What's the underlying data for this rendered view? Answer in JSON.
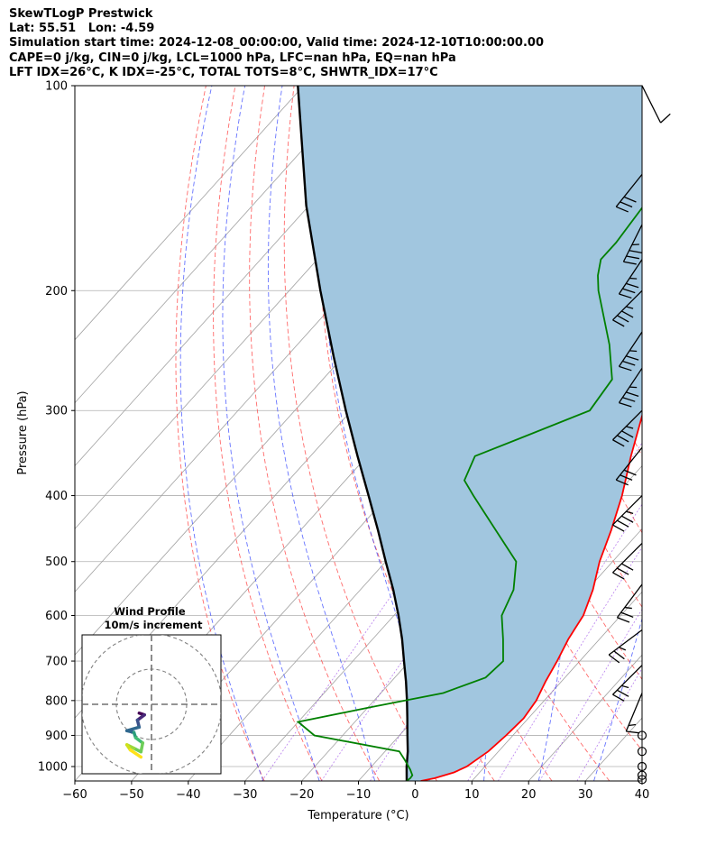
{
  "header": {
    "title": "SkewTLogP Prestwick",
    "location": "Lat: 55.51   Lon: -4.59",
    "times": "Simulation start time: 2024-12-08_00:00:00, Valid time: 2024-12-10T10:00:00.00",
    "indices1": "CAPE=0 j/kg, CIN=0 j/kg, LCL=1000 hPa, LFC=nan hPa, EQ=nan hPa",
    "indices2": "LFT IDX=26°C, K IDX=-25°C, TOTAL TOTS=8°C, SHWTR_IDX=17°C"
  },
  "chart_data": {
    "type": "line",
    "subtype": "skew-T log-P sounding",
    "xlabel": "Temperature (°C)",
    "ylabel": "Pressure (hPa)",
    "xlim": [
      -60,
      40
    ],
    "ylim": [
      1050,
      100
    ],
    "y_scale": "log",
    "grid": true,
    "x_ticks": [
      -60,
      -50,
      -40,
      -30,
      -20,
      -10,
      0,
      10,
      20,
      30,
      40
    ],
    "y_ticks": [
      100,
      200,
      300,
      400,
      500,
      600,
      700,
      800,
      900,
      1000
    ],
    "series": [
      {
        "role": "temperature",
        "color": "#ff0000",
        "points": [
          [
            1050,
            1
          ],
          [
            1040,
            3
          ],
          [
            1020,
            5.5
          ],
          [
            1000,
            6.8
          ],
          [
            950,
            8.2
          ],
          [
            900,
            8.8
          ],
          [
            850,
            9.2
          ],
          [
            800,
            8.6
          ],
          [
            750,
            7.2
          ],
          [
            700,
            6
          ],
          [
            650,
            4.5
          ],
          [
            600,
            3.4
          ],
          [
            550,
            1
          ],
          [
            500,
            -2.3
          ],
          [
            450,
            -5.2
          ],
          [
            400,
            -8.8
          ],
          [
            350,
            -13.5
          ],
          [
            300,
            -18.5
          ],
          [
            250,
            -27
          ],
          [
            200,
            -37
          ],
          [
            180,
            -41.5
          ],
          [
            175,
            -39
          ],
          [
            160,
            -37.5
          ],
          [
            150,
            -38
          ],
          [
            140,
            -36
          ],
          [
            120,
            -36.5
          ],
          [
            110,
            -34
          ],
          [
            100,
            -35
          ]
        ]
      },
      {
        "role": "dewpoint",
        "color": "#008000",
        "points": [
          [
            1050,
            -1.5
          ],
          [
            1040,
            -1.3
          ],
          [
            1030,
            -1.4
          ],
          [
            1010,
            -2.7
          ],
          [
            980,
            -5
          ],
          [
            950,
            -7.5
          ],
          [
            900,
            -25
          ],
          [
            860,
            -30
          ],
          [
            820,
            -20
          ],
          [
            780,
            -9
          ],
          [
            740,
            -4
          ],
          [
            700,
            -3.5
          ],
          [
            650,
            -7
          ],
          [
            600,
            -11
          ],
          [
            550,
            -13
          ],
          [
            500,
            -17
          ],
          [
            450,
            -25.5
          ],
          [
            400,
            -35
          ],
          [
            380,
            -39
          ],
          [
            350,
            -41
          ],
          [
            330,
            -36
          ],
          [
            300,
            -28
          ],
          [
            270,
            -29
          ],
          [
            240,
            -35
          ],
          [
            200,
            -45.5
          ],
          [
            190,
            -48
          ],
          [
            180,
            -50
          ],
          [
            170,
            -50
          ],
          [
            150,
            -51
          ],
          [
            130,
            -51
          ],
          [
            120,
            -54
          ],
          [
            100,
            -57
          ]
        ]
      },
      {
        "role": "parcel",
        "color": "#000000",
        "points": [
          [
            1050,
            -1.5
          ],
          [
            1000,
            -3.8
          ],
          [
            950,
            -6
          ],
          [
            900,
            -8.6
          ],
          [
            850,
            -11.3
          ],
          [
            800,
            -14.2
          ],
          [
            750,
            -17.4
          ],
          [
            700,
            -21
          ],
          [
            650,
            -24.8
          ],
          [
            600,
            -29.2
          ],
          [
            550,
            -34.2
          ],
          [
            500,
            -40
          ],
          [
            450,
            -46.3
          ],
          [
            400,
            -53.5
          ],
          [
            350,
            -61.7
          ],
          [
            300,
            -71
          ],
          [
            250,
            -81.7
          ],
          [
            200,
            -94.5
          ],
          [
            150,
            -110.5
          ],
          [
            100,
            -131
          ]
        ]
      }
    ],
    "shaded_region": {
      "between": [
        "temperature",
        "parcel"
      ],
      "color": "#a1c6df"
    },
    "reference_lines": {
      "isotherms_c": [
        -130,
        -120,
        -110,
        -100,
        -90,
        -80,
        -70,
        -60,
        -50,
        -40,
        -30,
        -20,
        -10,
        0,
        10,
        20,
        30,
        40
      ],
      "dry_adiabats_c": [
        -30,
        -20,
        -10,
        0,
        10,
        20,
        30,
        40,
        50,
        60,
        70,
        80,
        90,
        100,
        110,
        120,
        130,
        140,
        150,
        160,
        170,
        180,
        190,
        200,
        210
      ],
      "moist_adiabats_c": [
        -30,
        -20,
        -10,
        0,
        10,
        20,
        30,
        40
      ],
      "mixing_ratio_gkg": [
        0.4,
        1,
        2,
        4,
        7,
        10,
        16,
        24
      ]
    },
    "wind_barbs": [
      {
        "p": 100,
        "u": -5,
        "v": 10
      },
      {
        "p": 135,
        "u": 20,
        "v": 25
      },
      {
        "p": 160,
        "u": 15,
        "v": 30
      },
      {
        "p": 180,
        "u": 20,
        "v": 30
      },
      {
        "p": 200,
        "u": 25,
        "v": 25
      },
      {
        "p": 230,
        "u": 20,
        "v": 30
      },
      {
        "p": 260,
        "u": 20,
        "v": 30
      },
      {
        "p": 300,
        "u": 25,
        "v": 25
      },
      {
        "p": 340,
        "u": 20,
        "v": 25
      },
      {
        "p": 400,
        "u": 25,
        "v": 25
      },
      {
        "p": 470,
        "u": 20,
        "v": 20
      },
      {
        "p": 540,
        "u": 15,
        "v": 20
      },
      {
        "p": 630,
        "u": 20,
        "v": 15
      },
      {
        "p": 710,
        "u": 18,
        "v": 18
      },
      {
        "p": 780,
        "u": 5,
        "v": 12
      },
      {
        "p": 900,
        "u": 0,
        "v": 0
      },
      {
        "p": 950,
        "u": 0,
        "v": 0
      },
      {
        "p": 1000,
        "u": 0,
        "v": 0
      },
      {
        "p": 1030,
        "u": 0,
        "v": 0
      },
      {
        "p": 1045,
        "u": 0,
        "v": 0
      }
    ],
    "hodograph": {
      "title": "Wind Profile",
      "subtitle": "10m/s increment",
      "ring_ms": [
        10,
        20,
        30,
        40
      ],
      "points": [
        [
          -3.5,
          -2.5
        ],
        [
          -2,
          -3
        ],
        [
          -4,
          -4.5
        ],
        [
          -3.5,
          -6.5
        ],
        [
          -7,
          -7.5
        ],
        [
          -5,
          -8
        ],
        [
          -4.5,
          -9.5
        ],
        [
          -2.5,
          -11
        ],
        [
          -3,
          -13.5
        ],
        [
          -5,
          -12.5
        ],
        [
          -7,
          -11.5
        ],
        [
          -6,
          -13
        ],
        [
          -4.5,
          -14
        ],
        [
          -3,
          -15
        ]
      ]
    }
  }
}
